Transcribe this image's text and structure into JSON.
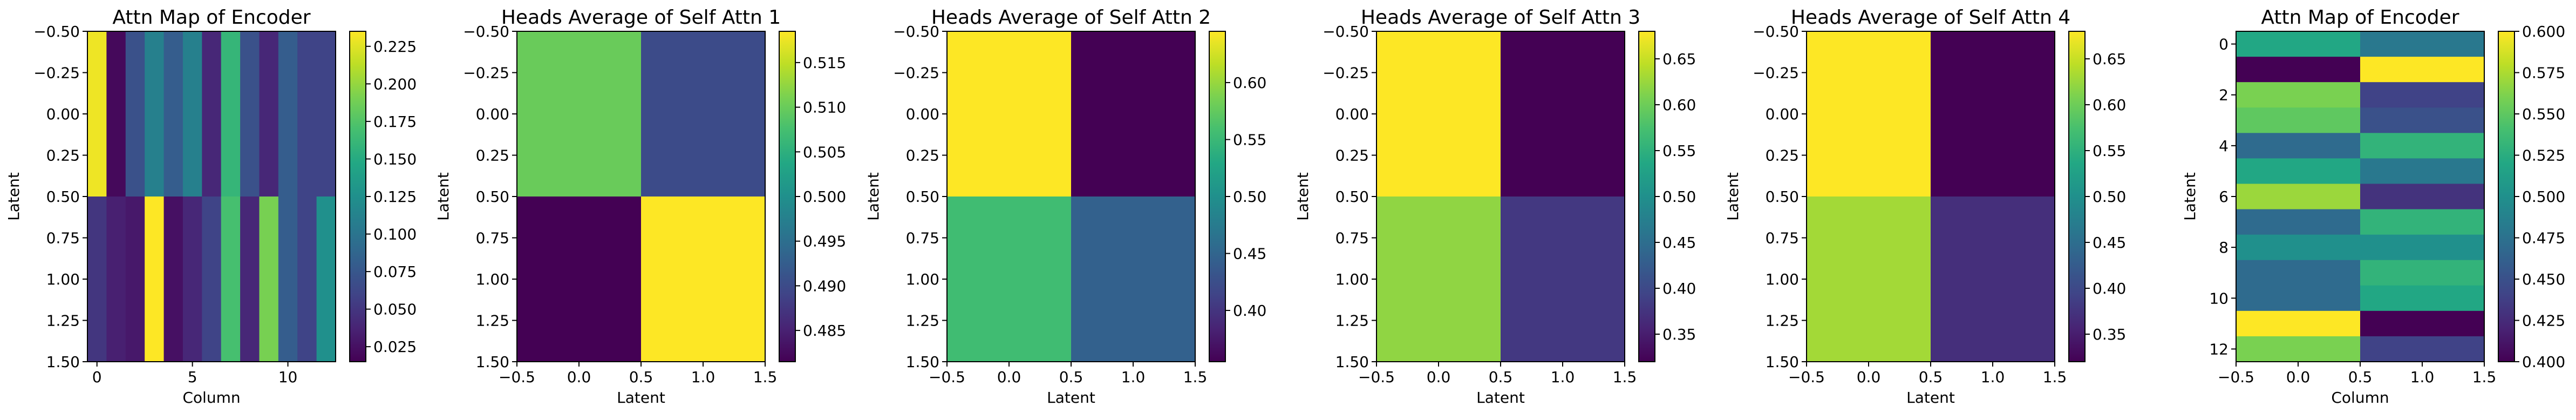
{
  "chart_data": [
    {
      "type": "heatmap",
      "title": "Attn Map of Encoder",
      "xlabel": "Column",
      "ylabel": "Latent",
      "xlim": [
        -0.5,
        12.5
      ],
      "ylim": [
        1.5,
        -0.5
      ],
      "xticks": [
        0,
        5,
        10
      ],
      "xtick_labels": [
        "0",
        "5",
        "10"
      ],
      "yticks": [
        -0.5,
        -0.25,
        0.0,
        0.25,
        0.5,
        0.75,
        1.0,
        1.25,
        1.5
      ],
      "ytick_labels": [
        "−0.50",
        "−0.25",
        "0.00",
        "0.25",
        "0.50",
        "0.75",
        "1.00",
        "1.25",
        "1.50"
      ],
      "colorbar": {
        "vmin": 0.015,
        "vmax": 0.235,
        "ticks": [
          0.025,
          0.05,
          0.075,
          0.1,
          0.125,
          0.15,
          0.175,
          0.2,
          0.225
        ],
        "tick_labels": [
          "0.025",
          "0.050",
          "0.075",
          "0.100",
          "0.125",
          "0.150",
          "0.175",
          "0.200",
          "0.225"
        ]
      },
      "matrix": [
        [
          0.23,
          0.02,
          0.07,
          0.11,
          0.08,
          0.11,
          0.04,
          0.16,
          0.07,
          0.04,
          0.08,
          0.06,
          0.06
        ],
        [
          0.05,
          0.035,
          0.03,
          0.235,
          0.025,
          0.04,
          0.06,
          0.17,
          0.04,
          0.19,
          0.08,
          0.06,
          0.125
        ]
      ]
    },
    {
      "type": "heatmap",
      "title": "Heads Average of Self Attn 1",
      "xlabel": "Latent",
      "ylabel": "Latent",
      "xlim": [
        -0.5,
        1.5
      ],
      "ylim": [
        1.5,
        -0.5
      ],
      "xticks": [
        -0.5,
        0.0,
        0.5,
        1.0,
        1.5
      ],
      "xtick_labels": [
        "−0.5",
        "0.0",
        "0.5",
        "1.0",
        "1.5"
      ],
      "yticks": [
        -0.5,
        -0.25,
        0.0,
        0.25,
        0.5,
        0.75,
        1.0,
        1.25,
        1.5
      ],
      "ytick_labels": [
        "−0.50",
        "−0.25",
        "0.00",
        "0.25",
        "0.50",
        "0.75",
        "1.00",
        "1.25",
        "1.50"
      ],
      "colorbar": {
        "vmin": 0.4815,
        "vmax": 0.5185,
        "ticks": [
          0.485,
          0.49,
          0.495,
          0.5,
          0.505,
          0.51,
          0.515
        ],
        "tick_labels": [
          "0.485",
          "0.490",
          "0.495",
          "0.500",
          "0.505",
          "0.510",
          "0.515"
        ]
      },
      "matrix": [
        [
          0.51,
          0.49
        ],
        [
          0.4815,
          0.5185
        ]
      ]
    },
    {
      "type": "heatmap",
      "title": "Heads Average of Self Attn 2",
      "xlabel": "Latent",
      "ylabel": "Latent",
      "xlim": [
        -0.5,
        1.5
      ],
      "ylim": [
        1.5,
        -0.5
      ],
      "xticks": [
        -0.5,
        0.0,
        0.5,
        1.0,
        1.5
      ],
      "xtick_labels": [
        "−0.5",
        "0.0",
        "0.5",
        "1.0",
        "1.5"
      ],
      "yticks": [
        -0.5,
        -0.25,
        0.0,
        0.25,
        0.5,
        0.75,
        1.0,
        1.25,
        1.5
      ],
      "ytick_labels": [
        "−0.50",
        "−0.25",
        "0.00",
        "0.25",
        "0.50",
        "0.75",
        "1.00",
        "1.25",
        "1.50"
      ],
      "colorbar": {
        "vmin": 0.355,
        "vmax": 0.645,
        "ticks": [
          0.4,
          0.45,
          0.5,
          0.55,
          0.6
        ],
        "tick_labels": [
          "0.40",
          "0.45",
          "0.50",
          "0.55",
          "0.60"
        ]
      },
      "matrix": [
        [
          0.645,
          0.355
        ],
        [
          0.555,
          0.445
        ]
      ]
    },
    {
      "type": "heatmap",
      "title": "Heads Average of Self Attn 3",
      "xlabel": "Latent",
      "ylabel": "Latent",
      "xlim": [
        -0.5,
        1.5
      ],
      "ylim": [
        1.5,
        -0.5
      ],
      "xticks": [
        -0.5,
        0.0,
        0.5,
        1.0,
        1.5
      ],
      "xtick_labels": [
        "−0.5",
        "0.0",
        "0.5",
        "1.0",
        "1.5"
      ],
      "yticks": [
        -0.5,
        -0.25,
        0.0,
        0.25,
        0.5,
        0.75,
        1.0,
        1.25,
        1.5
      ],
      "ytick_labels": [
        "−0.50",
        "−0.25",
        "0.00",
        "0.25",
        "0.50",
        "0.75",
        "1.00",
        "1.25",
        "1.50"
      ],
      "colorbar": {
        "vmin": 0.32,
        "vmax": 0.68,
        "ticks": [
          0.35,
          0.4,
          0.45,
          0.5,
          0.55,
          0.6,
          0.65
        ],
        "tick_labels": [
          "0.35",
          "0.40",
          "0.45",
          "0.50",
          "0.55",
          "0.60",
          "0.65"
        ]
      },
      "matrix": [
        [
          0.68,
          0.32
        ],
        [
          0.62,
          0.38
        ]
      ]
    },
    {
      "type": "heatmap",
      "title": "Heads Average of Self Attn 4",
      "xlabel": "Latent",
      "ylabel": "Latent",
      "xlim": [
        -0.5,
        1.5
      ],
      "ylim": [
        1.5,
        -0.5
      ],
      "xticks": [
        -0.5,
        0.0,
        0.5,
        1.0,
        1.5
      ],
      "xtick_labels": [
        "−0.5",
        "0.0",
        "0.5",
        "1.0",
        "1.5"
      ],
      "yticks": [
        -0.5,
        -0.25,
        0.0,
        0.25,
        0.5,
        0.75,
        1.0,
        1.25,
        1.5
      ],
      "ytick_labels": [
        "−0.50",
        "−0.25",
        "0.00",
        "0.25",
        "0.50",
        "0.75",
        "1.00",
        "1.25",
        "1.50"
      ],
      "colorbar": {
        "vmin": 0.32,
        "vmax": 0.68,
        "ticks": [
          0.35,
          0.4,
          0.45,
          0.5,
          0.55,
          0.6,
          0.65
        ],
        "tick_labels": [
          "0.35",
          "0.40",
          "0.45",
          "0.50",
          "0.55",
          "0.60",
          "0.65"
        ]
      },
      "matrix": [
        [
          0.68,
          0.32
        ],
        [
          0.63,
          0.37
        ]
      ]
    },
    {
      "type": "heatmap",
      "title": "Attn Map of Encoder",
      "xlabel": "Column",
      "ylabel": "Latent",
      "xlim": [
        -0.5,
        1.5
      ],
      "ylim": [
        12.5,
        -0.5
      ],
      "xticks": [
        -0.5,
        0.0,
        0.5,
        1.0,
        1.5
      ],
      "xtick_labels": [
        "−0.5",
        "0.0",
        "0.5",
        "1.0",
        "1.5"
      ],
      "yticks": [
        0,
        2,
        4,
        6,
        8,
        10,
        12
      ],
      "ytick_labels": [
        "0",
        "2",
        "4",
        "6",
        "8",
        "10",
        "12"
      ],
      "colorbar": {
        "vmin": 0.4,
        "vmax": 0.6,
        "ticks": [
          0.4,
          0.425,
          0.45,
          0.475,
          0.5,
          0.525,
          0.55,
          0.575,
          0.6
        ],
        "tick_labels": [
          "0.400",
          "0.425",
          "0.450",
          "0.475",
          "0.500",
          "0.525",
          "0.550",
          "0.575",
          "0.600"
        ]
      },
      "matrix": [
        [
          0.52,
          0.48
        ],
        [
          0.4,
          0.6
        ],
        [
          0.56,
          0.44
        ],
        [
          0.55,
          0.45
        ],
        [
          0.47,
          0.53
        ],
        [
          0.52,
          0.48
        ],
        [
          0.57,
          0.43
        ],
        [
          0.47,
          0.53
        ],
        [
          0.5,
          0.5
        ],
        [
          0.47,
          0.53
        ],
        [
          0.47,
          0.52
        ],
        [
          0.6,
          0.4
        ],
        [
          0.56,
          0.44
        ]
      ]
    }
  ]
}
